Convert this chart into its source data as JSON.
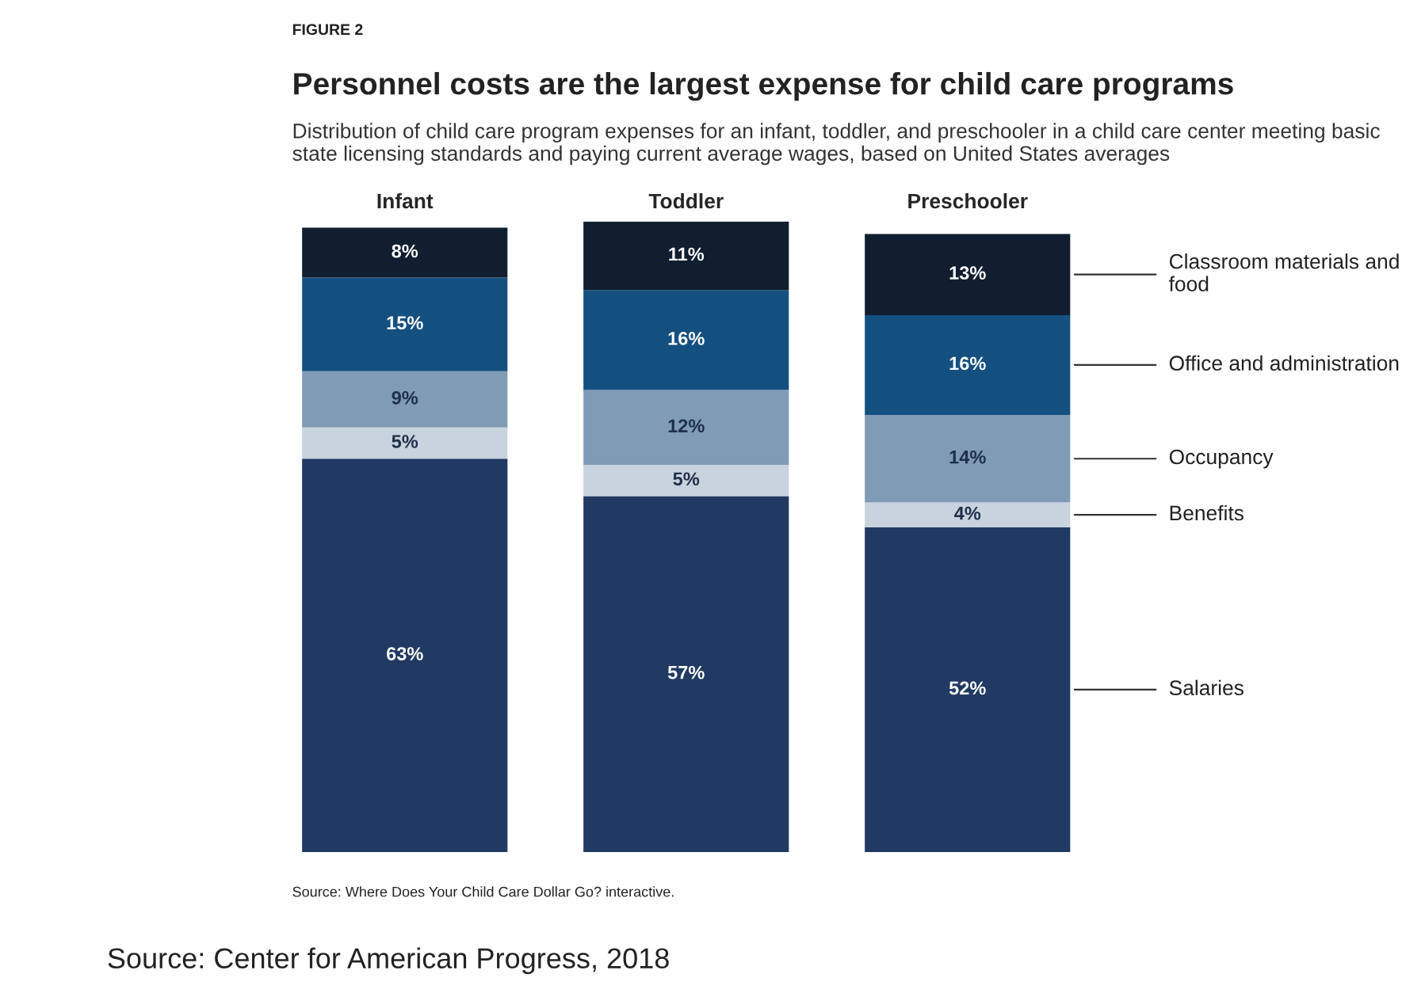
{
  "chart_data": {
    "type": "bar",
    "stacked": true,
    "title": "Personnel costs are the largest expense for child care programs",
    "subtitle": "Distribution of child care program expenses for an infant, toddler, and preschooler in a child care center meeting basic state licensing standards and paying current average wages, based on United States averages",
    "categories": [
      "Infant",
      "Toddler",
      "Preschooler"
    ],
    "series": [
      {
        "name": "Salaries",
        "color": "#213a63",
        "values": [
          63,
          57,
          52
        ],
        "value_labels": [
          "63%",
          "57%",
          "52%"
        ]
      },
      {
        "name": "Benefits",
        "color": "#c9d3de",
        "values": [
          5,
          5,
          4
        ],
        "value_labels": [
          "5%",
          "5%",
          "4%"
        ]
      },
      {
        "name": "Occupancy",
        "color": "#7f9bb6",
        "values": [
          9,
          12,
          14
        ],
        "value_labels": [
          "9%",
          "12%",
          "14%"
        ]
      },
      {
        "name": "Office and administration",
        "color": "#14507f",
        "values": [
          15,
          16,
          16
        ],
        "value_labels": [
          "15%",
          "16%",
          "16%"
        ]
      },
      {
        "name": "Classroom materials and food",
        "color": "#101e30",
        "values": [
          8,
          11,
          13
        ],
        "value_labels": [
          "8%",
          "11%",
          "13%"
        ]
      }
    ],
    "annotations": [
      "FIGURE 2",
      "Source: Where Does Your Child Care Dollar Go? interactive.",
      "Source: Center for American Progress, 2018"
    ]
  }
}
